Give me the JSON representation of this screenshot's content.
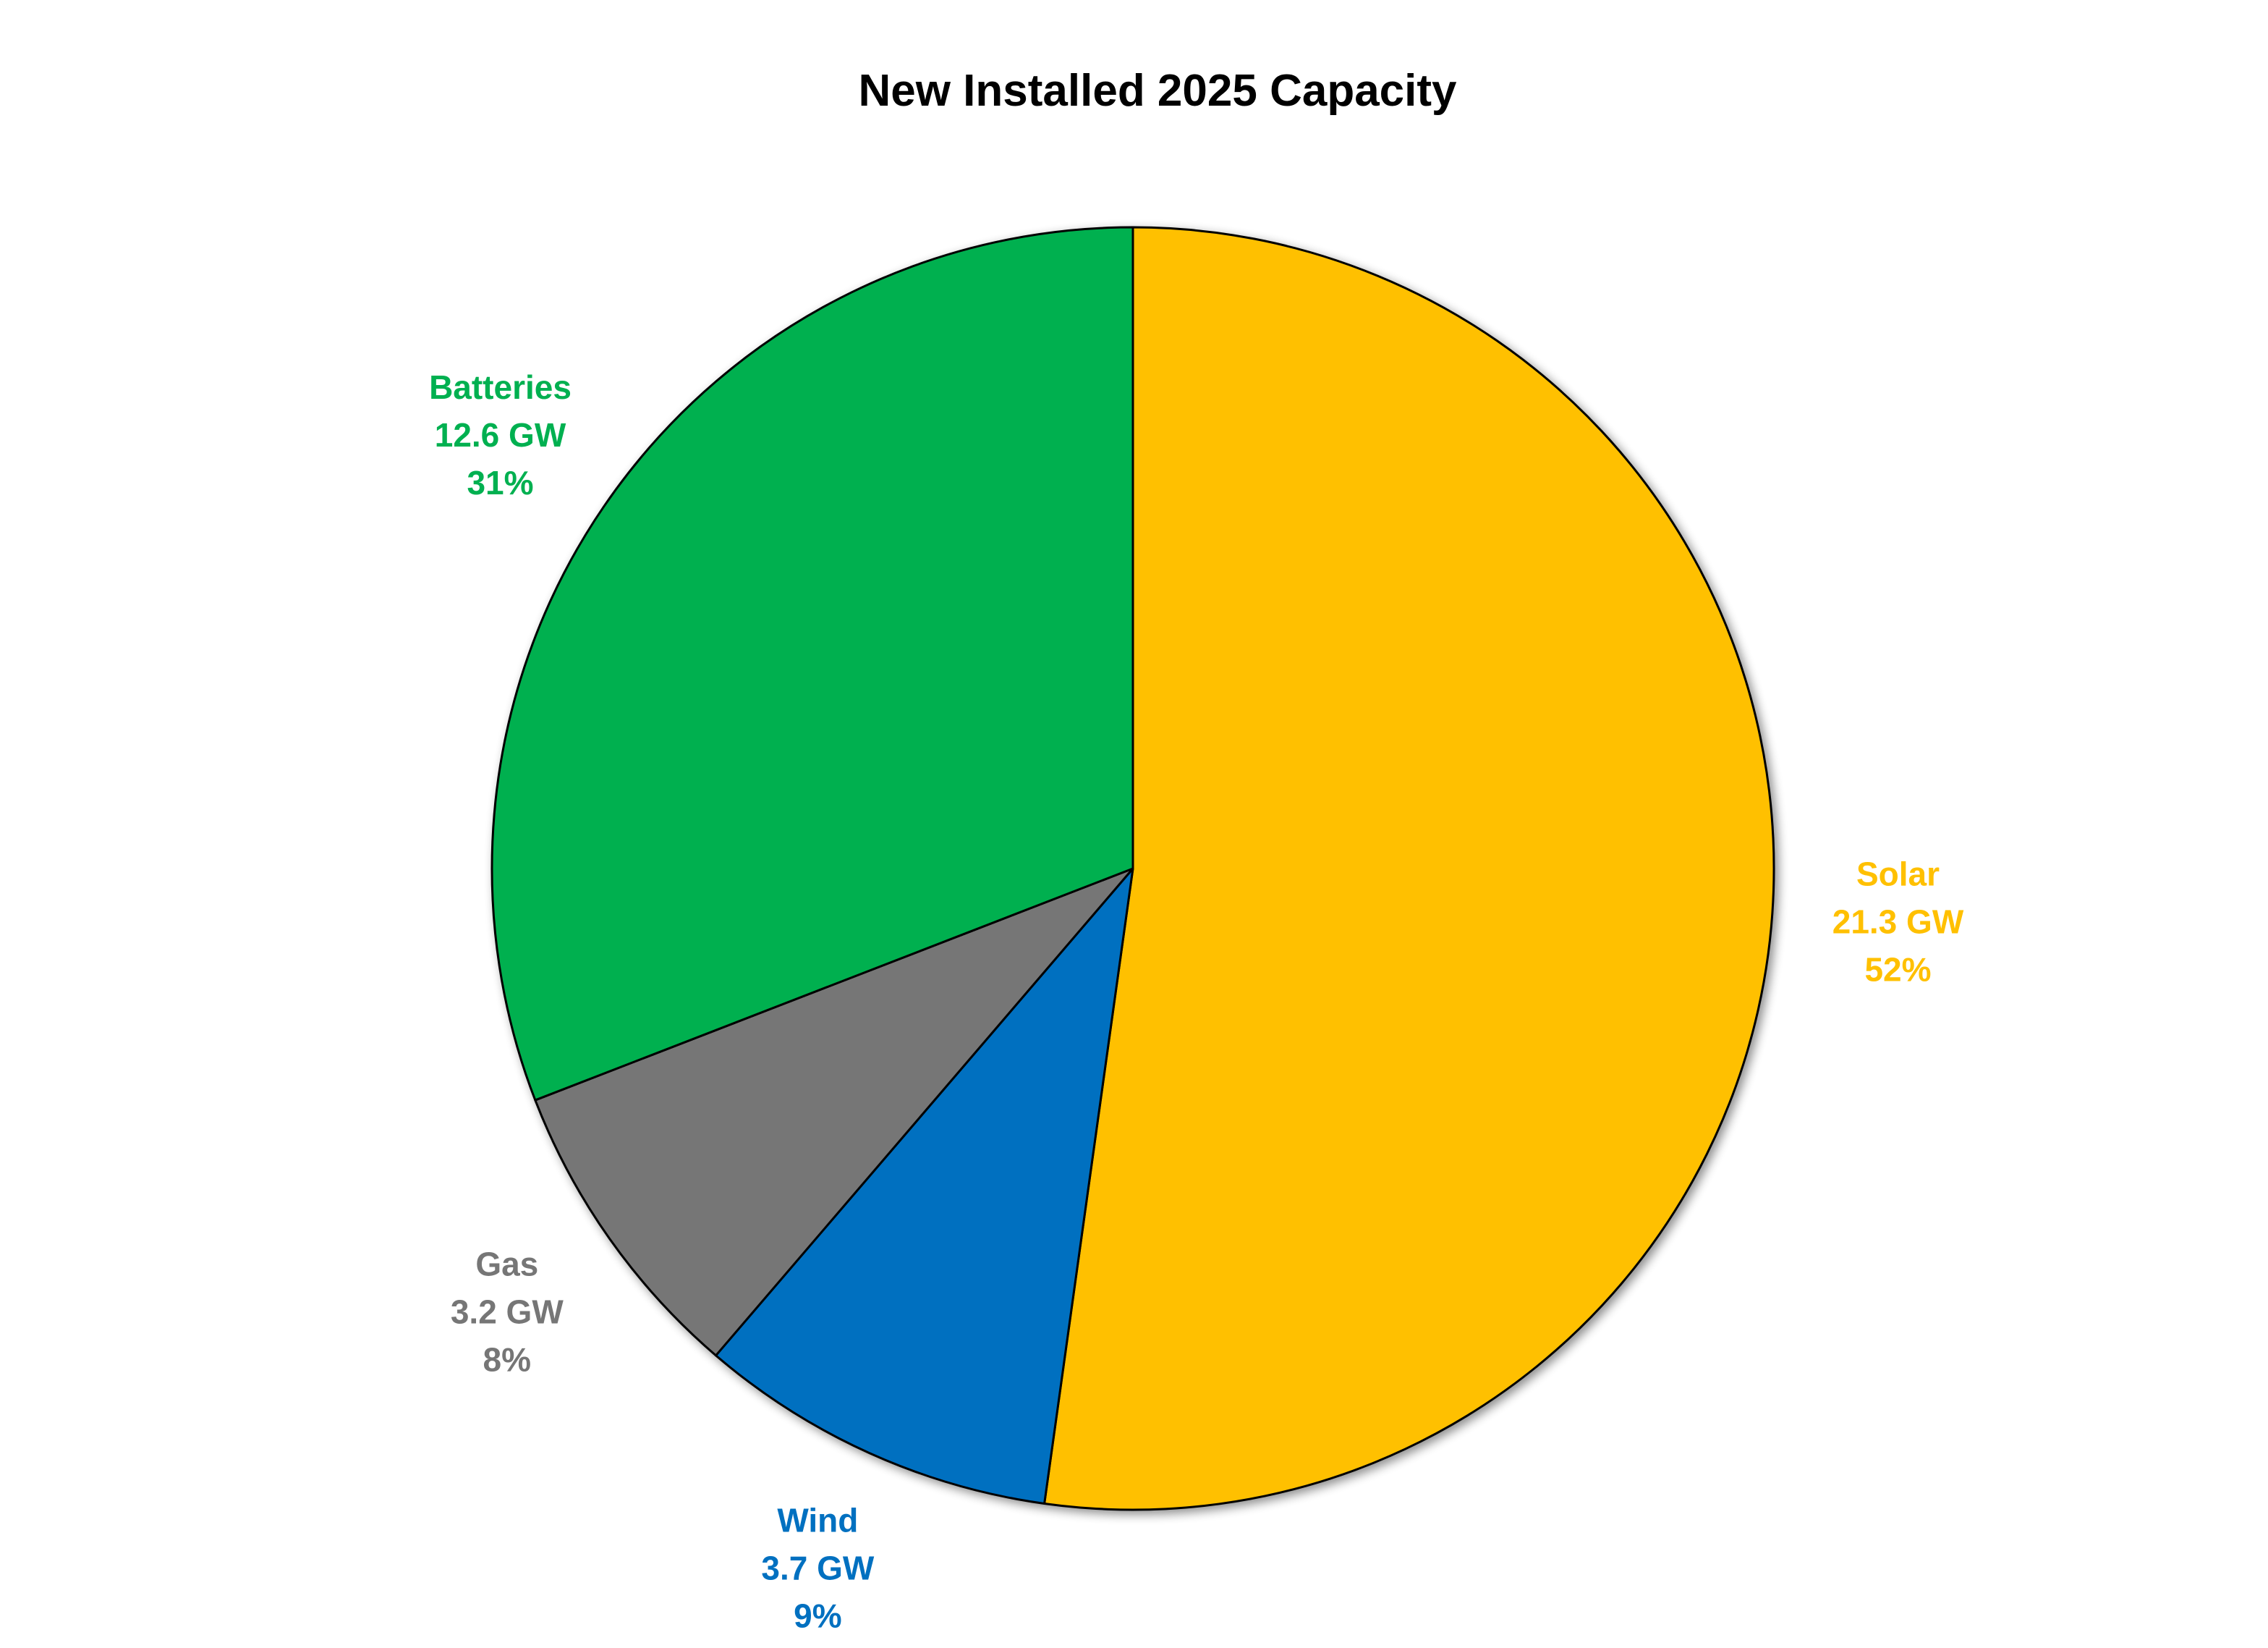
{
  "chart_data": {
    "type": "pie",
    "title": "New Installed 2025 Capacity",
    "unit": "GW",
    "slices": [
      {
        "name": "Solar",
        "value": 21.3,
        "value_label": "21.3 GW",
        "percent_label": "52%",
        "color": "#FFC000"
      },
      {
        "name": "Wind",
        "value": 3.7,
        "value_label": "3.7 GW",
        "percent_label": "9%",
        "color": "#0070C0"
      },
      {
        "name": "Gas",
        "value": 3.2,
        "value_label": "3.2 GW",
        "percent_label": "8%",
        "color": "#767676"
      },
      {
        "name": "Batteries",
        "value": 12.6,
        "value_label": "12.6 GW",
        "percent_label": "31%",
        "color": "#00B050"
      }
    ],
    "start_angle": "12 o'clock",
    "direction": "clockwise",
    "legend": "none"
  }
}
